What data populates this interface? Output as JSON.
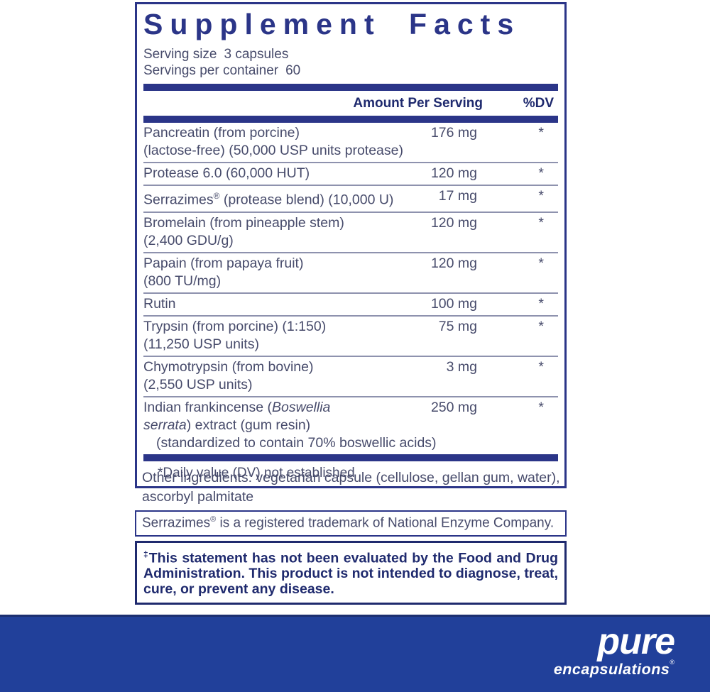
{
  "title": "Supplement Facts",
  "serving": {
    "size_label": "Serving size",
    "size_value": "3 capsules",
    "container_label": "Servings per container",
    "container_value": "60"
  },
  "table": {
    "amount_header": "Amount Per Serving",
    "dv_header": "%DV",
    "rows": [
      {
        "lines": [
          [
            {
              "t": "Pancreatin (from porcine)"
            }
          ],
          [
            {
              "t": "(lactose-free) (50,000 USP units protease)"
            }
          ]
        ],
        "amount": "176 mg",
        "dv": "*"
      },
      {
        "lines": [
          [
            {
              "t": "Protease 6.0 (60,000 HUT)"
            }
          ]
        ],
        "amount": "120 mg",
        "dv": "*"
      },
      {
        "lines": [
          [
            {
              "t": "Serrazimes"
            },
            {
              "t": "®",
              "sup": true
            },
            {
              "t": " (protease blend) (10,000 U)"
            }
          ]
        ],
        "amount": "17 mg",
        "dv": "*"
      },
      {
        "lines": [
          [
            {
              "t": "Bromelain (from pineapple stem)"
            }
          ],
          [
            {
              "t": "(2,400 GDU/g)"
            }
          ]
        ],
        "amount": "120 mg",
        "dv": "*"
      },
      {
        "lines": [
          [
            {
              "t": "Papain (from papaya fruit)"
            }
          ],
          [
            {
              "t": "(800 TU/mg)"
            }
          ]
        ],
        "amount": "120 mg",
        "dv": "*"
      },
      {
        "lines": [
          [
            {
              "t": "Rutin"
            }
          ]
        ],
        "amount": "100 mg",
        "dv": "*"
      },
      {
        "lines": [
          [
            {
              "t": "Trypsin (from porcine) (1:150)"
            }
          ],
          [
            {
              "t": "(11,250 USP units)"
            }
          ]
        ],
        "amount": "75 mg",
        "dv": "*"
      },
      {
        "lines": [
          [
            {
              "t": "Chymotrypsin (from bovine)"
            }
          ],
          [
            {
              "t": "(2,550 USP units)"
            }
          ]
        ],
        "amount": "3 mg",
        "dv": "*"
      },
      {
        "lines": [
          [
            {
              "t": "Indian frankincense ("
            },
            {
              "t": "Boswellia",
              "i": true
            }
          ],
          [
            {
              "t": "serrata",
              "i": true
            },
            {
              "t": ") extract (gum resin)"
            }
          ],
          [
            {
              "t": "(standardized to contain 70% boswellic acids)",
              "indent": true
            }
          ]
        ],
        "amount": "250 mg",
        "dv": "*"
      }
    ],
    "footnote": "*Daily value (DV) not established"
  },
  "other_ingredients": "Other ingredients: vegetarian capsule (cellulose, gellan gum, water), ascorbyl palmitate",
  "trademark": {
    "pre": "Serrazimes",
    "mark": "®",
    "rest": " is a registered trademark of National Enzyme Company."
  },
  "disclaimer": {
    "mark": "‡",
    "text": "This statement has not been evaluated by the Food and Drug Administration. This product is not intended to diagnose, treat, cure, or prevent any disease."
  },
  "brand": {
    "name": "pure",
    "sub": "encapsulations",
    "registered": "®"
  },
  "colors": {
    "navy": "#2B3588",
    "header_navy": "#1F2A6E",
    "body_text": "#474B6B",
    "band_blue": "#21409A",
    "separator": "#8E92AE"
  }
}
